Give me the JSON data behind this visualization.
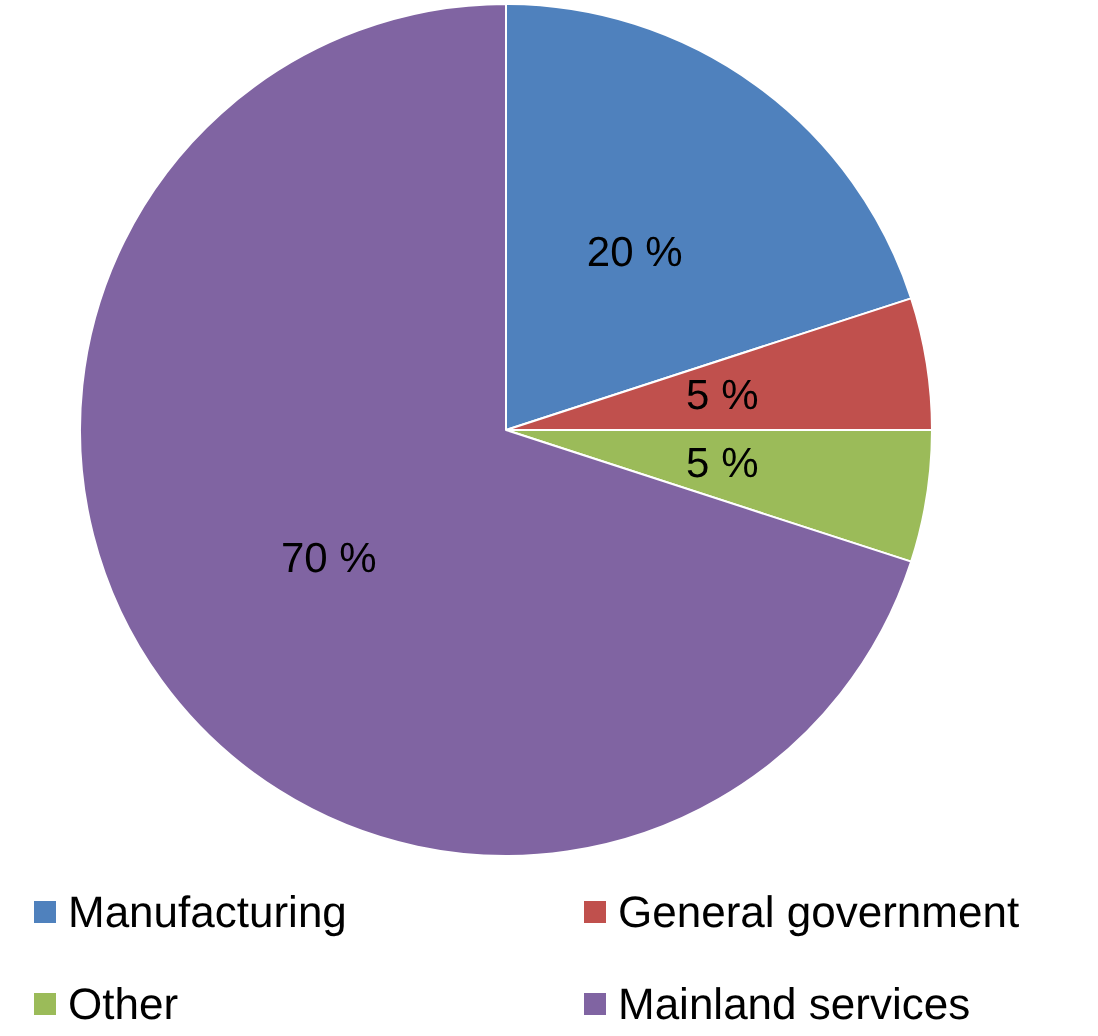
{
  "chart_data": {
    "type": "pie",
    "categories": [
      "Manufacturing",
      "General government",
      "Other",
      "Mainland services"
    ],
    "values": [
      20,
      5,
      5,
      70
    ],
    "colors": [
      "#4f81bd",
      "#c0504d",
      "#9bbb59",
      "#8064a2"
    ],
    "value_labels": [
      "20 %",
      "5 %",
      "5 %",
      "70 %"
    ],
    "legend": "bottom"
  }
}
